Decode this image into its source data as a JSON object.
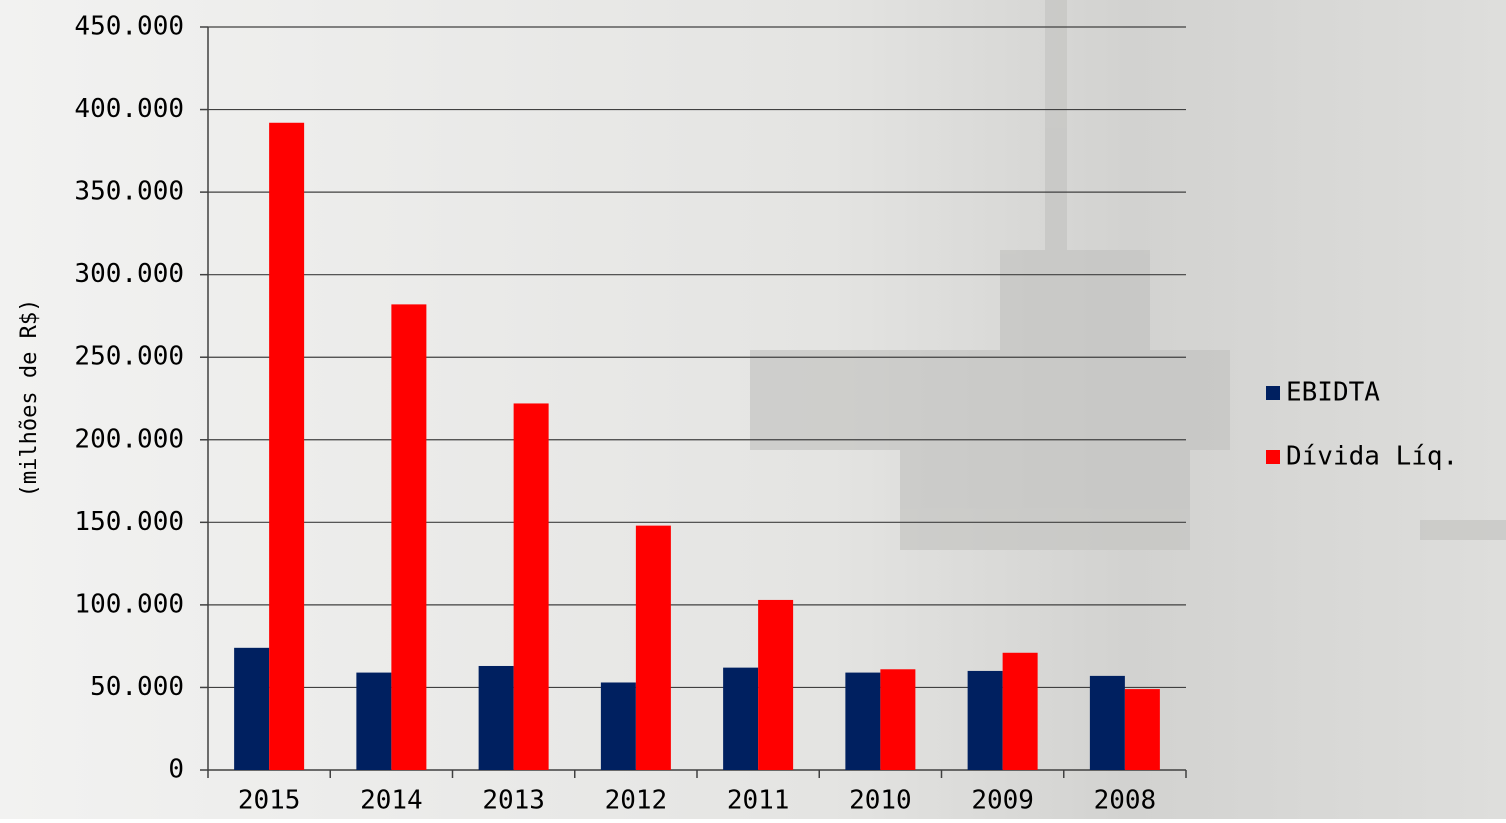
{
  "chart_data": {
    "type": "bar",
    "y_label": "(milhões de R$)",
    "categories": [
      "2015",
      "2014",
      "2013",
      "2012",
      "2011",
      "2010",
      "2009",
      "2008"
    ],
    "series": [
      {
        "name": "EBIDTA",
        "color": "#002060",
        "values": [
          74000,
          59000,
          63000,
          53000,
          62000,
          59000,
          60000,
          57000
        ]
      },
      {
        "name": "Dívida Líq.",
        "color": "#ff0000",
        "values": [
          392000,
          282000,
          222000,
          148000,
          103000,
          61000,
          71000,
          49000
        ]
      }
    ],
    "ylim": [
      0,
      450000
    ],
    "yticks": [
      0,
      {
        "value": 50000,
        "label": "50.000"
      },
      {
        "value": 100000,
        "label": "100.000"
      },
      {
        "value": 150000,
        "label": "150.000"
      },
      {
        "value": 200000,
        "label": "200.000"
      },
      {
        "value": 250000,
        "label": "250.000"
      },
      {
        "value": 300000,
        "label": "300.000"
      },
      {
        "value": 350000,
        "label": "350.000"
      },
      {
        "value": 400000,
        "label": "400.000"
      },
      {
        "value": 450000,
        "label": "450.000"
      }
    ],
    "grid": true,
    "legend": "right"
  }
}
